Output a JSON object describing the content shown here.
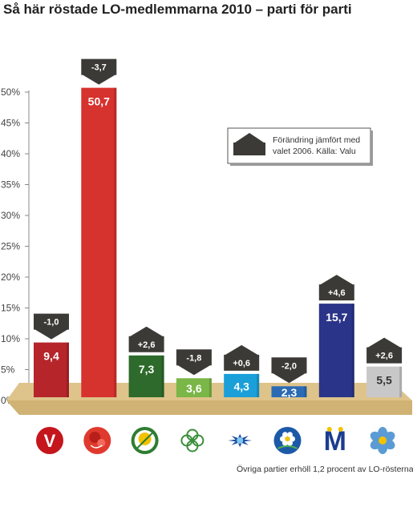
{
  "chart_data": {
    "type": "bar",
    "title": "Så här röstade LO-medlemmarna 2010 – parti för parti",
    "xlabel": "",
    "ylabel": "",
    "ylim": [
      0,
      50
    ],
    "y_ticks": [
      "0%",
      "5%",
      "10%",
      "15%",
      "20%",
      "25%",
      "30%",
      "35%",
      "40%",
      "45%",
      "50%"
    ],
    "categories": [
      "V",
      "S",
      "MP",
      "C",
      "FP",
      "KD",
      "M",
      "SD"
    ],
    "values": [
      9.4,
      50.7,
      7.3,
      3.6,
      4.3,
      2.3,
      15.7,
      5.5
    ],
    "value_labels": [
      "9,4",
      "50,7",
      "7,3",
      "3,6",
      "4,3",
      "2,3",
      "15,7",
      "5,5"
    ],
    "changes": [
      -1.0,
      -3.7,
      2.6,
      -1.8,
      0.6,
      -2.0,
      4.6,
      2.6
    ],
    "change_labels": [
      "-1,0",
      "-3,7",
      "+2,6",
      "-1,8",
      "+0,6",
      "-2,0",
      "+4,6",
      "+2,6"
    ],
    "colors": [
      "#b5252a",
      "#d6322e",
      "#2d6a2b",
      "#7ab648",
      "#1a9fd9",
      "#2a6bb4",
      "#2a3488",
      "#c8c8c8"
    ],
    "value_label_colors": [
      "#ffffff",
      "#ffffff",
      "#ffffff",
      "#ffffff",
      "#ffffff",
      "#ffffff",
      "#ffffff",
      "#333333"
    ],
    "legend": {
      "text_line1": "Förändring jämfört med",
      "text_line2": "valet 2006. Källa: Valu",
      "placement": "top-right"
    },
    "logo_icons": [
      "vansterpartiet-logo-icon",
      "socialdemokraterna-rose-icon",
      "miljopartiet-sunflower-icon",
      "centerpartiet-clover-icon",
      "folkpartiet-cornflower-icon",
      "kristdemokraterna-anemone-icon",
      "moderaterna-m-icon",
      "sverigedemokraterna-hepatica-icon"
    ],
    "footnote": "Övriga partier erhöll 1,2 procent av LO-rösterna",
    "grid": false
  }
}
